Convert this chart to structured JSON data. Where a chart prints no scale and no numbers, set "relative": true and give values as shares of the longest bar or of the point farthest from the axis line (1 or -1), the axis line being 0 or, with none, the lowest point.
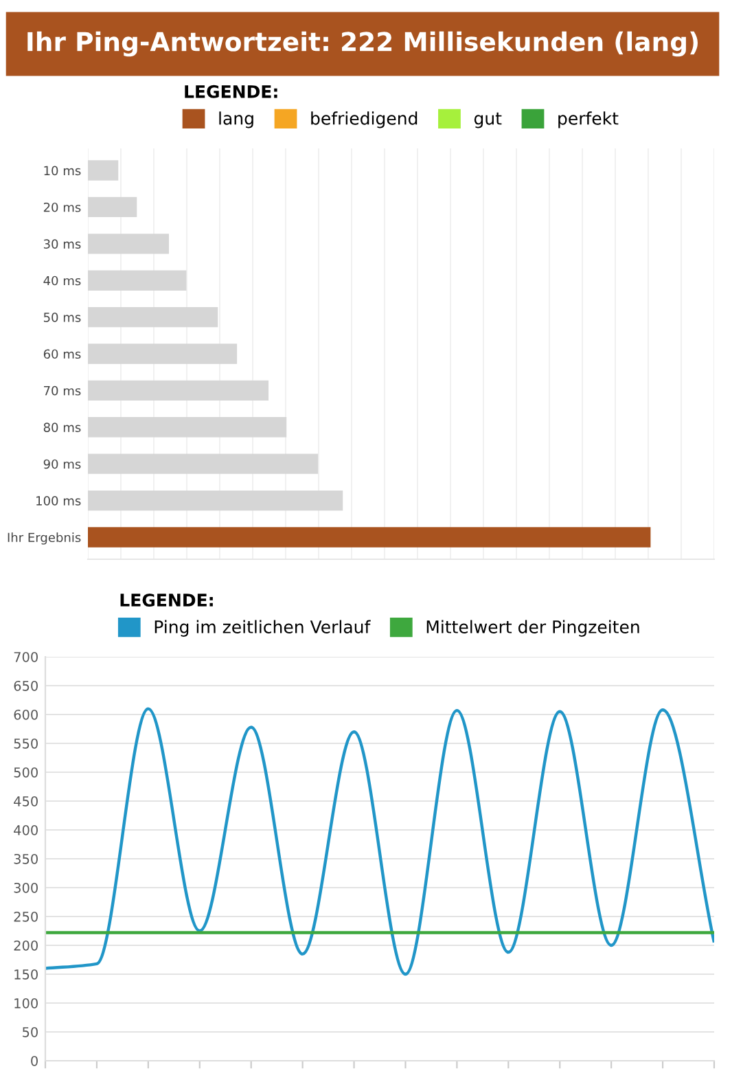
{
  "chart_data": [
    {
      "type": "bar",
      "orientation": "horizontal",
      "relative": true,
      "title": "Ihr Ping-Antwortzeit: 222 Millisekunden (lang)",
      "legend_title": "LEGENDE:",
      "legend": "top",
      "grid": "x",
      "categories": [
        "10 ms",
        "20 ms",
        "30 ms",
        "40 ms",
        "50 ms",
        "60 ms",
        "70 ms",
        "80 ms",
        "90 ms",
        "100 ms",
        "Ihr Ergebnis"
      ],
      "series": [
        {
          "color": "#d6d6d6",
          "values": [
            0.054,
            0.087,
            0.144,
            0.175,
            0.231,
            0.265,
            0.321,
            0.353,
            0.409,
            0.453,
            null
          ]
        },
        {
          "name": "lang",
          "color": "#a9531f",
          "values": [
            null,
            null,
            null,
            null,
            null,
            null,
            null,
            null,
            null,
            null,
            1
          ]
        },
        {
          "name": "befriedigend",
          "color": "#f5a623",
          "values": [
            null,
            null,
            null,
            null,
            null,
            null,
            null,
            null,
            null,
            null,
            null
          ]
        },
        {
          "name": "gut",
          "color": "#a6f03c",
          "values": [
            null,
            null,
            null,
            null,
            null,
            null,
            null,
            null,
            null,
            null,
            null
          ]
        },
        {
          "name": "perfekt",
          "color": "#3aa33a",
          "values": [
            null,
            null,
            null,
            null,
            null,
            null,
            null,
            null,
            null,
            null,
            null
          ]
        }
      ]
    },
    {
      "type": "line",
      "legend_title": "LEGENDE:",
      "legend": "top",
      "grid": "y",
      "marker": "none",
      "line_style": "solid",
      "categories": [
        null,
        null,
        null,
        null,
        null,
        null,
        null,
        null,
        null,
        null,
        null,
        null,
        null,
        null
      ],
      "ylim": [
        0,
        700
      ],
      "yticks": [
        0,
        50,
        100,
        150,
        200,
        250,
        300,
        350,
        400,
        450,
        500,
        550,
        600,
        650,
        700
      ],
      "series": [
        {
          "name": "Ping im zeitlichen Verlauf",
          "color": "#2196c8",
          "values": [
            160,
            168,
            610,
            225,
            578,
            185,
            570,
            150,
            607,
            188,
            605,
            200,
            608,
            205
          ]
        },
        {
          "name": "Mittelwert der Pingzeiten",
          "color": "#3ea83e",
          "values": [
            222,
            222,
            222,
            222,
            222,
            222,
            222,
            222,
            222,
            222,
            222,
            222,
            222,
            222
          ]
        }
      ]
    }
  ]
}
